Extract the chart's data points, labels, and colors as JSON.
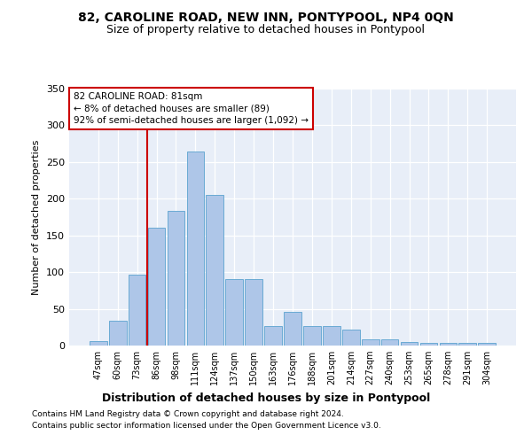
{
  "title": "82, CAROLINE ROAD, NEW INN, PONTYPOOL, NP4 0QN",
  "subtitle": "Size of property relative to detached houses in Pontypool",
  "xlabel": "Distribution of detached houses by size in Pontypool",
  "ylabel": "Number of detached properties",
  "categories": [
    "47sqm",
    "60sqm",
    "73sqm",
    "86sqm",
    "98sqm",
    "111sqm",
    "124sqm",
    "137sqm",
    "150sqm",
    "163sqm",
    "176sqm",
    "188sqm",
    "201sqm",
    "214sqm",
    "227sqm",
    "240sqm",
    "253sqm",
    "265sqm",
    "278sqm",
    "291sqm",
    "304sqm"
  ],
  "values": [
    6,
    34,
    96,
    160,
    184,
    264,
    205,
    90,
    90,
    27,
    46,
    27,
    27,
    22,
    8,
    8,
    5,
    4,
    4,
    4,
    4
  ],
  "bar_color": "#aec6e8",
  "bar_edge_color": "#6aaad4",
  "vline_color": "#cc0000",
  "vline_pos": 2.5,
  "annotation_text": "82 CAROLINE ROAD: 81sqm\n← 8% of detached houses are smaller (89)\n92% of semi-detached houses are larger (1,092) →",
  "ylim": [
    0,
    350
  ],
  "yticks": [
    0,
    50,
    100,
    150,
    200,
    250,
    300,
    350
  ],
  "plot_bg": "#e8eef8",
  "footer_line1": "Contains HM Land Registry data © Crown copyright and database right 2024.",
  "footer_line2": "Contains public sector information licensed under the Open Government Licence v3.0."
}
